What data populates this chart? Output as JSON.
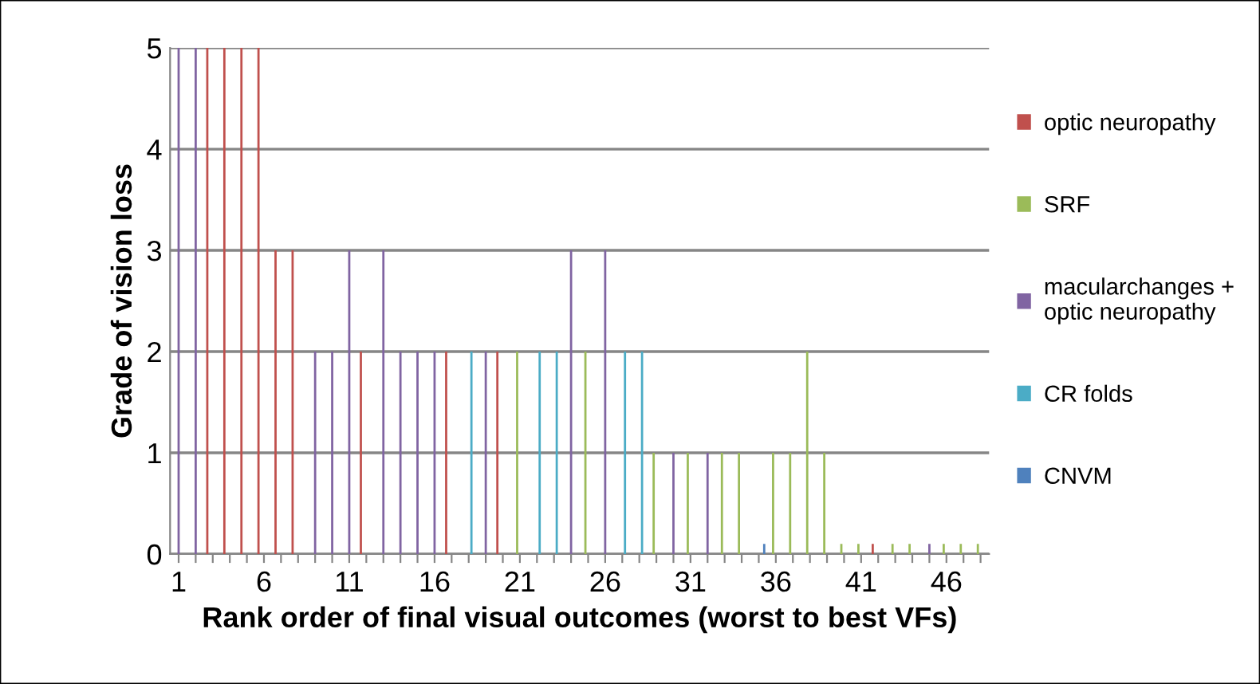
{
  "chart_data": {
    "type": "bar",
    "xlabel": "Rank order of final visual outcomes (worst to best VFs)",
    "ylabel": "Grade of vision loss",
    "categories": [
      "1",
      null,
      null,
      null,
      null,
      "6",
      null,
      null,
      null,
      null,
      "11",
      null,
      null,
      null,
      null,
      "16",
      null,
      null,
      null,
      null,
      "21",
      null,
      null,
      null,
      null,
      "26",
      null,
      null,
      null,
      null,
      "31",
      null,
      null,
      null,
      null,
      "36",
      null,
      null,
      null,
      null,
      "41",
      null,
      null,
      null,
      null,
      "46",
      null,
      null
    ],
    "series": [
      {
        "name": "optic neuropathy",
        "color": "#c0504d",
        "values": [
          null,
          null,
          5,
          5,
          5,
          5,
          3,
          3,
          null,
          null,
          null,
          2,
          null,
          null,
          null,
          null,
          2,
          null,
          null,
          2,
          null,
          null,
          null,
          null,
          null,
          null,
          null,
          null,
          null,
          null,
          null,
          null,
          null,
          null,
          null,
          null,
          null,
          null,
          null,
          null,
          null,
          0.1,
          null,
          null,
          null,
          null,
          null,
          null
        ]
      },
      {
        "name": "SRF",
        "color": "#9bbb59",
        "values": [
          null,
          null,
          null,
          null,
          null,
          null,
          null,
          null,
          null,
          null,
          null,
          null,
          null,
          null,
          null,
          null,
          null,
          null,
          null,
          null,
          2,
          null,
          null,
          null,
          2,
          null,
          null,
          null,
          1,
          null,
          1,
          null,
          1,
          1,
          null,
          1,
          1,
          2,
          1,
          0.1,
          0.1,
          null,
          0.1,
          0.1,
          null,
          0.1,
          0.1,
          0.1
        ]
      },
      {
        "name": "macularchanges + optic neuropathy",
        "color": "#8064a2",
        "values": [
          5,
          5,
          null,
          null,
          null,
          null,
          null,
          null,
          2,
          2,
          3,
          null,
          3,
          2,
          2,
          2,
          null,
          null,
          2,
          null,
          null,
          null,
          null,
          3,
          null,
          3,
          null,
          null,
          null,
          1,
          null,
          1,
          null,
          null,
          null,
          null,
          null,
          null,
          null,
          null,
          null,
          null,
          null,
          null,
          0.1,
          null,
          null,
          null
        ]
      },
      {
        "name": "CR folds",
        "color": "#4bacc6",
        "values": [
          null,
          null,
          null,
          null,
          null,
          null,
          null,
          null,
          null,
          null,
          null,
          null,
          null,
          null,
          null,
          null,
          null,
          2,
          null,
          null,
          null,
          2,
          2,
          null,
          null,
          null,
          2,
          2,
          null,
          null,
          null,
          null,
          null,
          null,
          null,
          null,
          null,
          null,
          null,
          null,
          null,
          null,
          null,
          null,
          null,
          null,
          null,
          null
        ]
      },
      {
        "name": "CNVM",
        "color": "#4f81bd",
        "values": [
          null,
          null,
          null,
          null,
          null,
          null,
          null,
          null,
          null,
          null,
          null,
          null,
          null,
          null,
          null,
          null,
          null,
          null,
          null,
          null,
          null,
          null,
          null,
          null,
          null,
          null,
          null,
          null,
          null,
          null,
          null,
          null,
          null,
          null,
          0.1,
          null,
          null,
          null,
          null,
          null,
          null,
          null,
          null,
          null,
          null,
          null,
          null,
          null
        ]
      }
    ],
    "ylim": [
      0,
      5
    ],
    "yticks": [
      0,
      1,
      2,
      3,
      4,
      5
    ],
    "grid": "y",
    "legend": "right"
  }
}
